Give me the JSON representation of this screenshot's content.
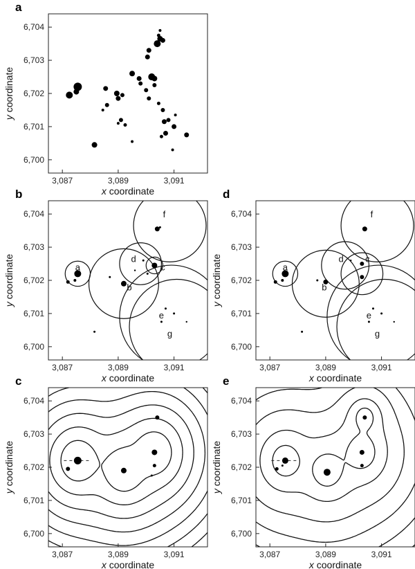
{
  "figure": {
    "x_axis_label": "x coordinate",
    "y_axis_label": "y coordinate"
  },
  "chart_data": [
    {
      "panel": "a",
      "type": "scatter",
      "xlabel": "x coordinate",
      "ylabel": "y coordinate",
      "xlim": [
        3086.5,
        3092.2
      ],
      "ylim": [
        6699.6,
        6704.4
      ],
      "xticks": [
        "3,087",
        "3,089",
        "3,091"
      ],
      "yticks": [
        "6,700",
        "6,701",
        "6,702",
        "6,703",
        "6,704"
      ],
      "points": [
        {
          "x": 3087.25,
          "y": 6701.95,
          "s": 5
        },
        {
          "x": 3087.55,
          "y": 6702.2,
          "s": 6
        },
        {
          "x": 3087.5,
          "y": 6702.05,
          "s": 4
        },
        {
          "x": 3088.15,
          "y": 6700.45,
          "s": 4
        },
        {
          "x": 3088.45,
          "y": 6701.5,
          "s": 2
        },
        {
          "x": 3088.6,
          "y": 6701.65,
          "s": 3
        },
        {
          "x": 3088.55,
          "y": 6702.15,
          "s": 3.5
        },
        {
          "x": 3088.95,
          "y": 6702.0,
          "s": 4
        },
        {
          "x": 3089.0,
          "y": 6701.85,
          "s": 3.5
        },
        {
          "x": 3089.15,
          "y": 6701.95,
          "s": 3
        },
        {
          "x": 3089.1,
          "y": 6701.2,
          "s": 3
        },
        {
          "x": 3089.0,
          "y": 6701.1,
          "s": 2
        },
        {
          "x": 3089.25,
          "y": 6701.05,
          "s": 2.5
        },
        {
          "x": 3089.5,
          "y": 6702.6,
          "s": 4
        },
        {
          "x": 3089.75,
          "y": 6702.45,
          "s": 3.5
        },
        {
          "x": 3089.8,
          "y": 6702.3,
          "s": 3
        },
        {
          "x": 3089.5,
          "y": 6700.55,
          "s": 2
        },
        {
          "x": 3090.0,
          "y": 6702.1,
          "s": 3
        },
        {
          "x": 3090.1,
          "y": 6701.85,
          "s": 3
        },
        {
          "x": 3090.2,
          "y": 6702.5,
          "s": 5
        },
        {
          "x": 3090.3,
          "y": 6702.45,
          "s": 4
        },
        {
          "x": 3090.3,
          "y": 6702.25,
          "s": 3
        },
        {
          "x": 3090.05,
          "y": 6703.1,
          "s": 3.5
        },
        {
          "x": 3090.1,
          "y": 6703.3,
          "s": 3.5
        },
        {
          "x": 3090.4,
          "y": 6703.5,
          "s": 5
        },
        {
          "x": 3090.5,
          "y": 6703.65,
          "s": 4
        },
        {
          "x": 3090.6,
          "y": 6703.6,
          "s": 3.5
        },
        {
          "x": 3090.45,
          "y": 6703.75,
          "s": 2.5
        },
        {
          "x": 3090.5,
          "y": 6703.9,
          "s": 2
        },
        {
          "x": 3090.45,
          "y": 6701.7,
          "s": 2.5
        },
        {
          "x": 3090.6,
          "y": 6701.5,
          "s": 3
        },
        {
          "x": 3090.65,
          "y": 6701.15,
          "s": 3.5
        },
        {
          "x": 3090.8,
          "y": 6701.2,
          "s": 3
        },
        {
          "x": 3090.7,
          "y": 6700.8,
          "s": 3.5
        },
        {
          "x": 3090.55,
          "y": 6700.7,
          "s": 2.5
        },
        {
          "x": 3091.0,
          "y": 6701.0,
          "s": 3.5
        },
        {
          "x": 3091.05,
          "y": 6701.35,
          "s": 2
        },
        {
          "x": 3090.95,
          "y": 6700.3,
          "s": 2
        },
        {
          "x": 3091.45,
          "y": 6700.75,
          "s": 3.5
        }
      ]
    },
    {
      "panel": "b",
      "type": "scatter",
      "xlabel": "x coordinate",
      "ylabel": "y coordinate",
      "xlim": [
        3086.5,
        3092.2
      ],
      "ylim": [
        6699.6,
        6704.4
      ],
      "xticks": [
        "3,087",
        "3,089",
        "3,091"
      ],
      "yticks": [
        "6,700",
        "6,701",
        "6,702",
        "6,703",
        "6,704"
      ],
      "circles": [
        {
          "label": "a",
          "cx": 3087.55,
          "cy": 6702.2,
          "r": 0.45
        },
        {
          "label": "b",
          "cx": 3089.2,
          "cy": 6701.9,
          "r": 1.25
        },
        {
          "label": "c",
          "cx": 3090.3,
          "cy": 6702.45,
          "r": 0.3
        },
        {
          "label": "d",
          "cx": 3089.8,
          "cy": 6702.5,
          "r": 0.75
        },
        {
          "label": "e",
          "cx": 3090.9,
          "cy": 6700.9,
          "r": 1.85
        },
        {
          "label": "f",
          "cx": 3090.85,
          "cy": 6703.65,
          "r": 1.3
        },
        {
          "label": "g",
          "cx": 3091.1,
          "cy": 6700.6,
          "r": 1.7
        }
      ],
      "labels": [
        {
          "text": "a",
          "x": 3087.55,
          "y": 6702.3
        },
        {
          "text": "b",
          "x": 3089.4,
          "y": 6701.7
        },
        {
          "text": "c",
          "x": 3090.6,
          "y": 6702.3
        },
        {
          "text": "d",
          "x": 3089.55,
          "y": 6702.55
        },
        {
          "text": "e",
          "x": 3090.55,
          "y": 6700.85
        },
        {
          "text": "f",
          "x": 3090.65,
          "y": 6703.9
        },
        {
          "text": "g",
          "x": 3090.85,
          "y": 6700.3
        }
      ],
      "points": [
        {
          "x": 3087.55,
          "y": 6702.2,
          "s": 5
        },
        {
          "x": 3087.2,
          "y": 6701.95,
          "s": 2.5
        },
        {
          "x": 3087.45,
          "y": 6702.0,
          "s": 2
        },
        {
          "x": 3089.2,
          "y": 6701.9,
          "s": 4
        },
        {
          "x": 3090.3,
          "y": 6702.45,
          "s": 4
        },
        {
          "x": 3090.4,
          "y": 6703.55,
          "s": 3.5
        },
        {
          "x": 3090.5,
          "y": 6703.6,
          "s": 1.5
        },
        {
          "x": 3089.9,
          "y": 6702.6,
          "s": 1.5
        },
        {
          "x": 3088.7,
          "y": 6702.1,
          "s": 1.5
        },
        {
          "x": 3088.15,
          "y": 6700.45,
          "s": 1.5
        },
        {
          "x": 3090.7,
          "y": 6701.15,
          "s": 1.5
        },
        {
          "x": 3090.55,
          "y": 6700.75,
          "s": 1.5
        },
        {
          "x": 3091.0,
          "y": 6701.0,
          "s": 1.5
        },
        {
          "x": 3091.45,
          "y": 6700.75,
          "s": 1.2
        },
        {
          "x": 3090.05,
          "y": 6702.2,
          "s": 1.5
        },
        {
          "x": 3089.6,
          "y": 6702.3,
          "s": 1.2
        }
      ]
    },
    {
      "panel": "d",
      "type": "scatter",
      "xlabel": "x coordinate",
      "ylabel": "y coordinate",
      "xlim": [
        3086.5,
        3092.2
      ],
      "ylim": [
        6699.6,
        6704.4
      ],
      "xticks": [
        "3,087",
        "3,089",
        "3,091"
      ],
      "yticks": [
        "6,700",
        "6,701",
        "6,702",
        "6,703",
        "6,704"
      ],
      "circles": [
        {
          "label": "a",
          "cx": 3087.55,
          "cy": 6702.2,
          "r": 0.45
        },
        {
          "label": "b",
          "cx": 3089.0,
          "cy": 6701.9,
          "r": 1.2
        },
        {
          "label": "c",
          "cx": 3090.3,
          "cy": 6702.2,
          "r": 0.75
        },
        {
          "label": "d",
          "cx": 3089.7,
          "cy": 6702.45,
          "r": 0.85
        },
        {
          "label": "e",
          "cx": 3090.9,
          "cy": 6700.9,
          "r": 1.85
        },
        {
          "label": "f",
          "cx": 3090.85,
          "cy": 6703.65,
          "r": 1.3
        },
        {
          "label": "g",
          "cx": 3091.1,
          "cy": 6700.6,
          "r": 1.7
        }
      ],
      "labels": [
        {
          "text": "a",
          "x": 3087.55,
          "y": 6702.3
        },
        {
          "text": "b",
          "x": 3088.95,
          "y": 6701.7
        },
        {
          "text": "c",
          "x": 3090.5,
          "y": 6702.55
        },
        {
          "text": "d",
          "x": 3089.55,
          "y": 6702.55
        },
        {
          "text": "e",
          "x": 3090.55,
          "y": 6700.85
        },
        {
          "text": "f",
          "x": 3090.65,
          "y": 6703.9
        },
        {
          "text": "g",
          "x": 3090.85,
          "y": 6700.3
        }
      ],
      "points": [
        {
          "x": 3087.55,
          "y": 6702.2,
          "s": 5
        },
        {
          "x": 3087.2,
          "y": 6701.95,
          "s": 2.5
        },
        {
          "x": 3087.45,
          "y": 6702.0,
          "s": 2
        },
        {
          "x": 3089.0,
          "y": 6701.95,
          "s": 3.5
        },
        {
          "x": 3090.3,
          "y": 6702.5,
          "s": 3
        },
        {
          "x": 3090.4,
          "y": 6703.55,
          "s": 3.5
        },
        {
          "x": 3090.3,
          "y": 6702.1,
          "s": 3
        },
        {
          "x": 3088.7,
          "y": 6702.0,
          "s": 1.5
        },
        {
          "x": 3088.15,
          "y": 6700.45,
          "s": 1.5
        },
        {
          "x": 3090.7,
          "y": 6701.15,
          "s": 1.5
        },
        {
          "x": 3090.55,
          "y": 6700.75,
          "s": 1.5
        },
        {
          "x": 3091.0,
          "y": 6701.0,
          "s": 1.5
        },
        {
          "x": 3091.45,
          "y": 6700.75,
          "s": 1.2
        },
        {
          "x": 3089.9,
          "y": 6702.6,
          "s": 1.2
        }
      ]
    },
    {
      "panel": "c",
      "type": "contour",
      "xlabel": "x coordinate",
      "ylabel": "y coordinate",
      "xlim": [
        3086.5,
        3092.2
      ],
      "ylim": [
        6699.6,
        6704.4
      ],
      "xticks": [
        "3,087",
        "3,089",
        "3,091"
      ],
      "yticks": [
        "6,700",
        "6,701",
        "6,702",
        "6,703",
        "6,704"
      ],
      "centers": [
        {
          "x": 3087.55,
          "y": 6702.2,
          "w": 1.0
        },
        {
          "x": 3089.2,
          "y": 6701.9,
          "w": 1.0
        },
        {
          "x": 3090.3,
          "y": 6702.45,
          "w": 1.0
        }
      ],
      "levels": [
        0.6,
        1.0,
        1.4,
        1.8,
        2.2,
        2.6,
        3.0,
        3.4,
        3.8,
        4.2,
        4.6,
        5.0,
        5.4,
        5.8
      ],
      "points": [
        {
          "x": 3087.55,
          "y": 6702.2,
          "s": 5.5
        },
        {
          "x": 3087.2,
          "y": 6701.95,
          "s": 3
        },
        {
          "x": 3089.2,
          "y": 6701.9,
          "s": 4
        },
        {
          "x": 3090.3,
          "y": 6702.45,
          "s": 4
        },
        {
          "x": 3090.4,
          "y": 6703.5,
          "s": 3
        },
        {
          "x": 3090.3,
          "y": 6702.05,
          "s": 2.5
        },
        {
          "x": 3090.2,
          "y": 6701.75,
          "s": 1.5
        }
      ]
    },
    {
      "panel": "e",
      "type": "contour",
      "xlabel": "x coordinate",
      "ylabel": "y coordinate",
      "xlim": [
        3086.5,
        3092.2
      ],
      "ylim": [
        6699.6,
        6704.4
      ],
      "xticks": [
        "3,087",
        "3,089",
        "3,091"
      ],
      "yticks": [
        "6,700",
        "6,701",
        "6,702",
        "6,703",
        "6,704"
      ],
      "centers": [
        {
          "x": 3087.55,
          "y": 6702.2,
          "w": 1.0
        },
        {
          "x": 3089.05,
          "y": 6701.9,
          "w": 1.0
        },
        {
          "x": 3090.3,
          "y": 6702.45,
          "w": 1.0
        },
        {
          "x": 3090.4,
          "y": 6703.5,
          "w": 0.6
        }
      ],
      "levels": [
        0.45,
        0.9,
        1.5,
        2.1,
        2.7,
        3.3,
        3.9,
        4.5,
        5.1,
        5.7
      ],
      "points": [
        {
          "x": 3087.55,
          "y": 6702.2,
          "s": 4.5
        },
        {
          "x": 3087.25,
          "y": 6701.95,
          "s": 2.5
        },
        {
          "x": 3089.05,
          "y": 6701.85,
          "s": 5
        },
        {
          "x": 3090.3,
          "y": 6702.45,
          "s": 3.5
        },
        {
          "x": 3090.4,
          "y": 6703.5,
          "s": 3
        },
        {
          "x": 3090.3,
          "y": 6702.05,
          "s": 2.5
        },
        {
          "x": 3087.45,
          "y": 6702.05,
          "s": 1.5
        }
      ]
    }
  ]
}
